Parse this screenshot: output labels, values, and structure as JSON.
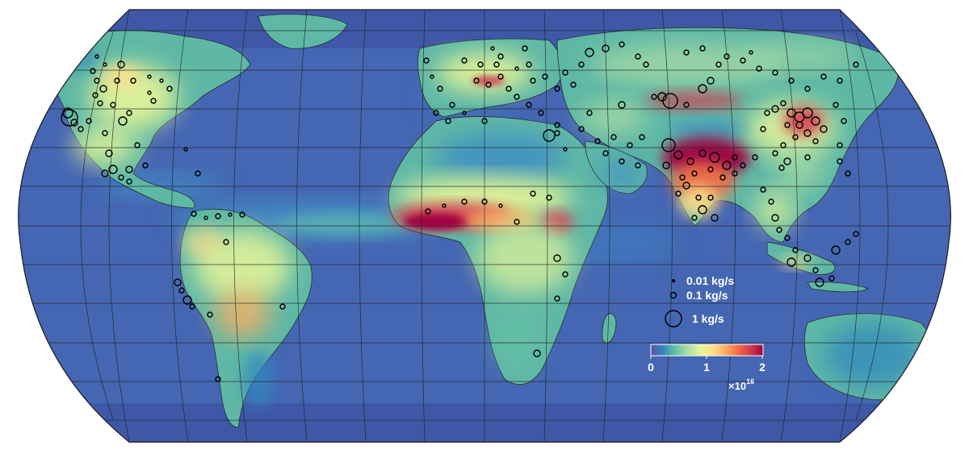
{
  "map": {
    "projection": "Eckert (pseudocylindrical) world map",
    "ocean_color": "#4566b2",
    "palette": [
      "#5e4fa2",
      "#3288bd",
      "#66c2a5",
      "#abdda4",
      "#e6f598",
      "#fee08b",
      "#fdae61",
      "#f46d43",
      "#d53e4f",
      "#9e0142"
    ],
    "coastline_color": "#2a2a2a",
    "graticule_color": "#1f1f1f"
  },
  "legend": {
    "items": [
      {
        "label": "0.01 kg/s",
        "size": 0.01
      },
      {
        "label": "0.1 kg/s",
        "size": 0.1
      },
      {
        "label": "1 kg/s",
        "size": 1
      }
    ]
  },
  "colorbar": {
    "ticks": [
      "0",
      "1",
      "2"
    ],
    "multiplier_base": "×10",
    "multiplier_exp": "16",
    "range": [
      0,
      2
    ]
  }
}
